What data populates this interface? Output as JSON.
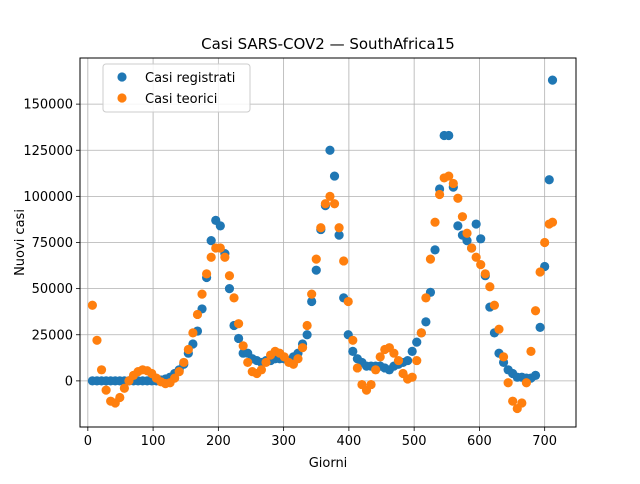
{
  "chart_data": {
    "type": "scatter",
    "title": "Casi SARS-COV2 — SouthAfrica15",
    "xlabel": "Giorni",
    "ylabel": "Nuovi casi",
    "xlim": [
      -12,
      748
    ],
    "ylim": [
      -25000,
      175000
    ],
    "x_ticks": [
      0,
      100,
      200,
      300,
      400,
      500,
      600,
      700
    ],
    "y_ticks": [
      0,
      25000,
      50000,
      75000,
      100000,
      125000,
      150000
    ],
    "grid": true,
    "legend_position": "top-left",
    "series": [
      {
        "name": "Casi registrati",
        "color": "#1f77b4",
        "points": [
          [
            7,
            0
          ],
          [
            14,
            0
          ],
          [
            21,
            0
          ],
          [
            28,
            0
          ],
          [
            35,
            0
          ],
          [
            42,
            0
          ],
          [
            49,
            0
          ],
          [
            56,
            0
          ],
          [
            63,
            0
          ],
          [
            70,
            0
          ],
          [
            77,
            0
          ],
          [
            84,
            0
          ],
          [
            91,
            0
          ],
          [
            98,
            0
          ],
          [
            105,
            0
          ],
          [
            112,
            500
          ],
          [
            119,
            1000
          ],
          [
            126,
            2000
          ],
          [
            133,
            4000
          ],
          [
            140,
            6000
          ],
          [
            147,
            9000
          ],
          [
            154,
            15000
          ],
          [
            161,
            20000
          ],
          [
            168,
            27000
          ],
          [
            175,
            39000
          ],
          [
            182,
            56000
          ],
          [
            189,
            76000
          ],
          [
            196,
            87000
          ],
          [
            203,
            84000
          ],
          [
            210,
            69000
          ],
          [
            217,
            50000
          ],
          [
            224,
            30000
          ],
          [
            231,
            23000
          ],
          [
            238,
            15000
          ],
          [
            245,
            15000
          ],
          [
            252,
            12000
          ],
          [
            259,
            11000
          ],
          [
            266,
            10000
          ],
          [
            273,
            11000
          ],
          [
            280,
            11000
          ],
          [
            287,
            12000
          ],
          [
            294,
            12000
          ],
          [
            301,
            12000
          ],
          [
            308,
            11000
          ],
          [
            315,
            13000
          ],
          [
            322,
            15000
          ],
          [
            329,
            20000
          ],
          [
            336,
            25000
          ],
          [
            343,
            43000
          ],
          [
            350,
            60000
          ],
          [
            357,
            82000
          ],
          [
            364,
            95000
          ],
          [
            371,
            125000
          ],
          [
            378,
            111000
          ],
          [
            385,
            79000
          ],
          [
            392,
            45000
          ],
          [
            399,
            25000
          ],
          [
            406,
            16000
          ],
          [
            413,
            12000
          ],
          [
            420,
            10000
          ],
          [
            427,
            8000
          ],
          [
            434,
            8000
          ],
          [
            441,
            8000
          ],
          [
            448,
            8000
          ],
          [
            455,
            7000
          ],
          [
            462,
            6000
          ],
          [
            469,
            8000
          ],
          [
            476,
            9000
          ],
          [
            483,
            10000
          ],
          [
            490,
            11000
          ],
          [
            497,
            16000
          ],
          [
            504,
            21000
          ],
          [
            511,
            26000
          ],
          [
            518,
            32000
          ],
          [
            525,
            48000
          ],
          [
            532,
            71000
          ],
          [
            539,
            104000
          ],
          [
            546,
            133000
          ],
          [
            553,
            133000
          ],
          [
            560,
            105000
          ],
          [
            567,
            84000
          ],
          [
            574,
            79000
          ],
          [
            581,
            76000
          ],
          [
            588,
            72000
          ],
          [
            595,
            85000
          ],
          [
            602,
            77000
          ],
          [
            609,
            57000
          ],
          [
            616,
            40000
          ],
          [
            623,
            26000
          ],
          [
            630,
            15000
          ],
          [
            637,
            10000
          ],
          [
            644,
            6000
          ],
          [
            651,
            4000
          ],
          [
            658,
            2000
          ],
          [
            665,
            2000
          ],
          [
            672,
            1500
          ],
          [
            679,
            1500
          ],
          [
            686,
            3000
          ],
          [
            693,
            29000
          ],
          [
            700,
            62000
          ],
          [
            707,
            109000
          ],
          [
            712,
            163000
          ]
        ]
      },
      {
        "name": "Casi teorici",
        "color": "#ff7f0e",
        "points": [
          [
            7,
            41000
          ],
          [
            14,
            22000
          ],
          [
            21,
            6000
          ],
          [
            28,
            -5000
          ],
          [
            35,
            -11000
          ],
          [
            42,
            -12000
          ],
          [
            49,
            -9000
          ],
          [
            56,
            -4000
          ],
          [
            63,
            0
          ],
          [
            70,
            3000
          ],
          [
            77,
            5000
          ],
          [
            84,
            6000
          ],
          [
            91,
            5500
          ],
          [
            98,
            4000
          ],
          [
            105,
            1500
          ],
          [
            112,
            -500
          ],
          [
            119,
            -1500
          ],
          [
            126,
            -1000
          ],
          [
            133,
            1500
          ],
          [
            140,
            5000
          ],
          [
            147,
            10000
          ],
          [
            154,
            17000
          ],
          [
            161,
            26000
          ],
          [
            168,
            36000
          ],
          [
            175,
            47000
          ],
          [
            182,
            58000
          ],
          [
            189,
            67000
          ],
          [
            196,
            72000
          ],
          [
            203,
            72000
          ],
          [
            210,
            67000
          ],
          [
            217,
            57000
          ],
          [
            224,
            45000
          ],
          [
            231,
            31000
          ],
          [
            238,
            19000
          ],
          [
            245,
            10000
          ],
          [
            252,
            5000
          ],
          [
            259,
            4000
          ],
          [
            266,
            6000
          ],
          [
            273,
            10000
          ],
          [
            280,
            14000
          ],
          [
            287,
            16000
          ],
          [
            294,
            15000
          ],
          [
            301,
            13000
          ],
          [
            308,
            10000
          ],
          [
            315,
            9000
          ],
          [
            322,
            12000
          ],
          [
            329,
            18000
          ],
          [
            336,
            30000
          ],
          [
            343,
            47000
          ],
          [
            350,
            66000
          ],
          [
            357,
            83000
          ],
          [
            364,
            96000
          ],
          [
            371,
            100000
          ],
          [
            378,
            96000
          ],
          [
            385,
            83000
          ],
          [
            392,
            65000
          ],
          [
            399,
            43000
          ],
          [
            406,
            22000
          ],
          [
            413,
            7000
          ],
          [
            420,
            -2000
          ],
          [
            427,
            -5000
          ],
          [
            434,
            -2000
          ],
          [
            441,
            6000
          ],
          [
            448,
            13000
          ],
          [
            455,
            17000
          ],
          [
            462,
            18000
          ],
          [
            469,
            15000
          ],
          [
            476,
            11000
          ],
          [
            483,
            4000
          ],
          [
            490,
            1000
          ],
          [
            497,
            2000
          ],
          [
            504,
            11000
          ],
          [
            511,
            26000
          ],
          [
            518,
            45000
          ],
          [
            525,
            66000
          ],
          [
            532,
            86000
          ],
          [
            539,
            101000
          ],
          [
            546,
            110000
          ],
          [
            553,
            111000
          ],
          [
            560,
            107000
          ],
          [
            567,
            99000
          ],
          [
            574,
            89000
          ],
          [
            581,
            80000
          ],
          [
            588,
            72000
          ],
          [
            595,
            67000
          ],
          [
            602,
            63000
          ],
          [
            609,
            58000
          ],
          [
            616,
            51000
          ],
          [
            623,
            41000
          ],
          [
            630,
            28000
          ],
          [
            637,
            13000
          ],
          [
            644,
            -1000
          ],
          [
            651,
            -11000
          ],
          [
            658,
            -15000
          ],
          [
            665,
            -12000
          ],
          [
            672,
            -1000
          ],
          [
            679,
            16000
          ],
          [
            686,
            38000
          ],
          [
            693,
            59000
          ],
          [
            700,
            75000
          ],
          [
            707,
            85000
          ],
          [
            712,
            86000
          ]
        ]
      }
    ]
  }
}
